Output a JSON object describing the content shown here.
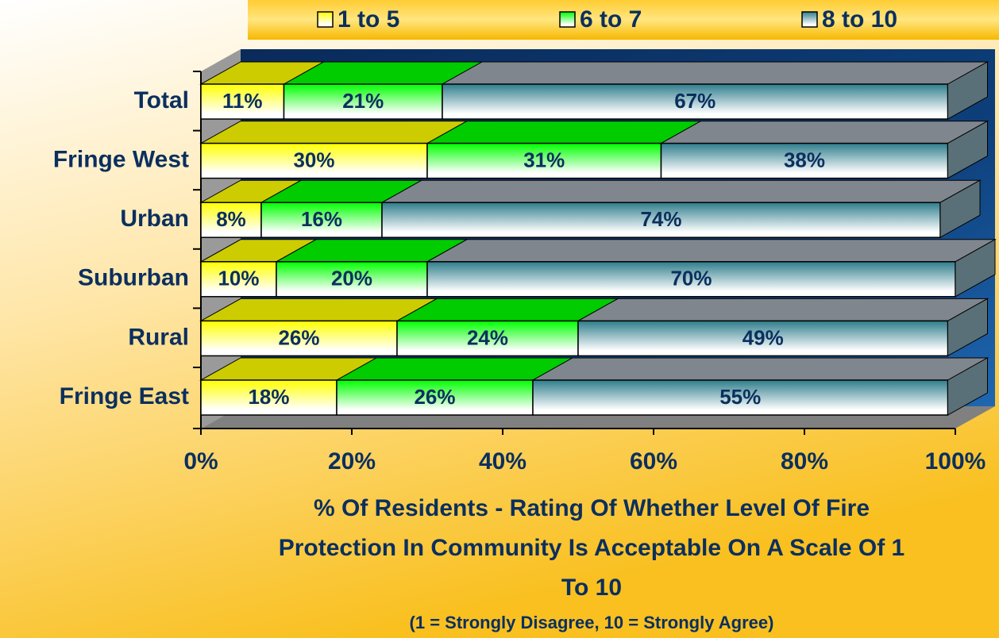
{
  "chart_data": {
    "type": "stacked-bar-horizontal",
    "title": "% Of Residents - Rating Of Whether Level Of Fire Protection In Community Is Acceptable On A Scale Of 1 To 10",
    "subtitle": "(1 = Strongly Disagree, 10 = Strongly Agree)",
    "categories": [
      "Total",
      "Fringe West",
      "Urban",
      "Suburban",
      "Rural",
      "Fringe East"
    ],
    "series": [
      {
        "name": "1 to 5",
        "color": "#ffff00",
        "values": [
          11,
          30,
          8,
          10,
          26,
          18
        ],
        "value_labels": [
          "11%",
          "30%",
          "8%",
          "10%",
          "26%",
          "18%"
        ]
      },
      {
        "name": "6 to 7",
        "color": "#00ff00",
        "values": [
          21,
          31,
          16,
          20,
          24,
          26
        ],
        "value_labels": [
          "21%",
          "31%",
          "16%",
          "20%",
          "24%",
          "26%"
        ]
      },
      {
        "name": "8 to 10",
        "color": "#2e7d8c",
        "values": [
          67,
          38,
          74,
          70,
          49,
          55
        ],
        "value_labels": [
          "67%",
          "38%",
          "74%",
          "70%",
          "49%",
          "55%"
        ]
      }
    ],
    "xlim": [
      0,
      100
    ],
    "xticks": [
      {
        "value": 0,
        "label": "0%"
      },
      {
        "value": 20,
        "label": "20%"
      },
      {
        "value": 40,
        "label": "40%"
      },
      {
        "value": 60,
        "label": "60%"
      },
      {
        "value": 80,
        "label": "80%"
      },
      {
        "value": 100,
        "label": "100%"
      }
    ],
    "legend": "top"
  }
}
